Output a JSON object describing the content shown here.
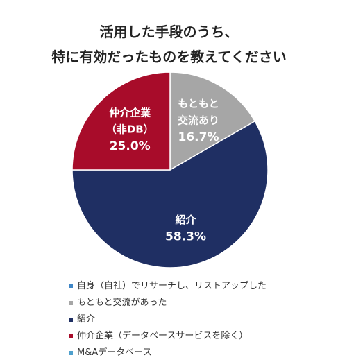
{
  "title_lines": [
    "活用した手段のうち、",
    "特に有効だったものを教えてください"
  ],
  "colors": {
    "self": "#3f86c6",
    "connection": "#a6a6a6",
    "referral": "#1f2f63",
    "intermediary": "#a80c2a",
    "ma_database": "#4fa0cd"
  },
  "chart_data": {
    "type": "pie",
    "slices": [
      {
        "label": "自身（自社）でリサーチし、リストアップした",
        "value": 0,
        "color": "#3f86c6"
      },
      {
        "label": "もともと交流があった",
        "value": 16.7,
        "color": "#a6a6a6",
        "inside_lines": [
          "もともと",
          "交流あり"
        ],
        "pct_label": "16.7%"
      },
      {
        "label": "紹介",
        "value": 58.3,
        "color": "#1f2f63",
        "inside_lines": [
          "紹介"
        ],
        "pct_label": "58.3%"
      },
      {
        "label": "仲介企業（データベースサービスを除く）",
        "value": 25.0,
        "color": "#a80c2a",
        "inside_lines": [
          "仲介企業",
          "（非DB）"
        ],
        "pct_label": "25.0%"
      },
      {
        "label": "M&Aデータベース",
        "value": 0,
        "color": "#4fa0cd"
      }
    ],
    "legend_position": "bottom"
  }
}
